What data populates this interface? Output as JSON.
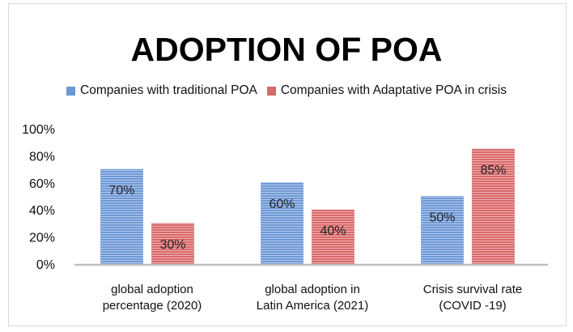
{
  "chart_data": {
    "type": "bar",
    "title": "ADOPTION OF POA",
    "categories": [
      [
        "global adoption",
        "percentage (2020)"
      ],
      [
        "global adoption in",
        "Latin America (2021)"
      ],
      [
        "Crisis survival rate",
        "(COVID -19)"
      ]
    ],
    "series": [
      {
        "name": "Companies with traditional POA",
        "values": [
          70,
          60,
          50
        ],
        "labels": [
          "70%",
          "60%",
          "50%"
        ],
        "color": "#6d98d6"
      },
      {
        "name": "Companies with Adaptative POA in crisis",
        "values": [
          30,
          40,
          85
        ],
        "labels": [
          "30%",
          "40%",
          "85%"
        ],
        "color": "#d9686a"
      }
    ],
    "yticks": [
      "0%",
      "20%",
      "40%",
      "60%",
      "80%",
      "100%"
    ],
    "ylim": [
      0,
      100
    ],
    "grid": false,
    "legend": "top",
    "xlabel": "",
    "ylabel": ""
  }
}
